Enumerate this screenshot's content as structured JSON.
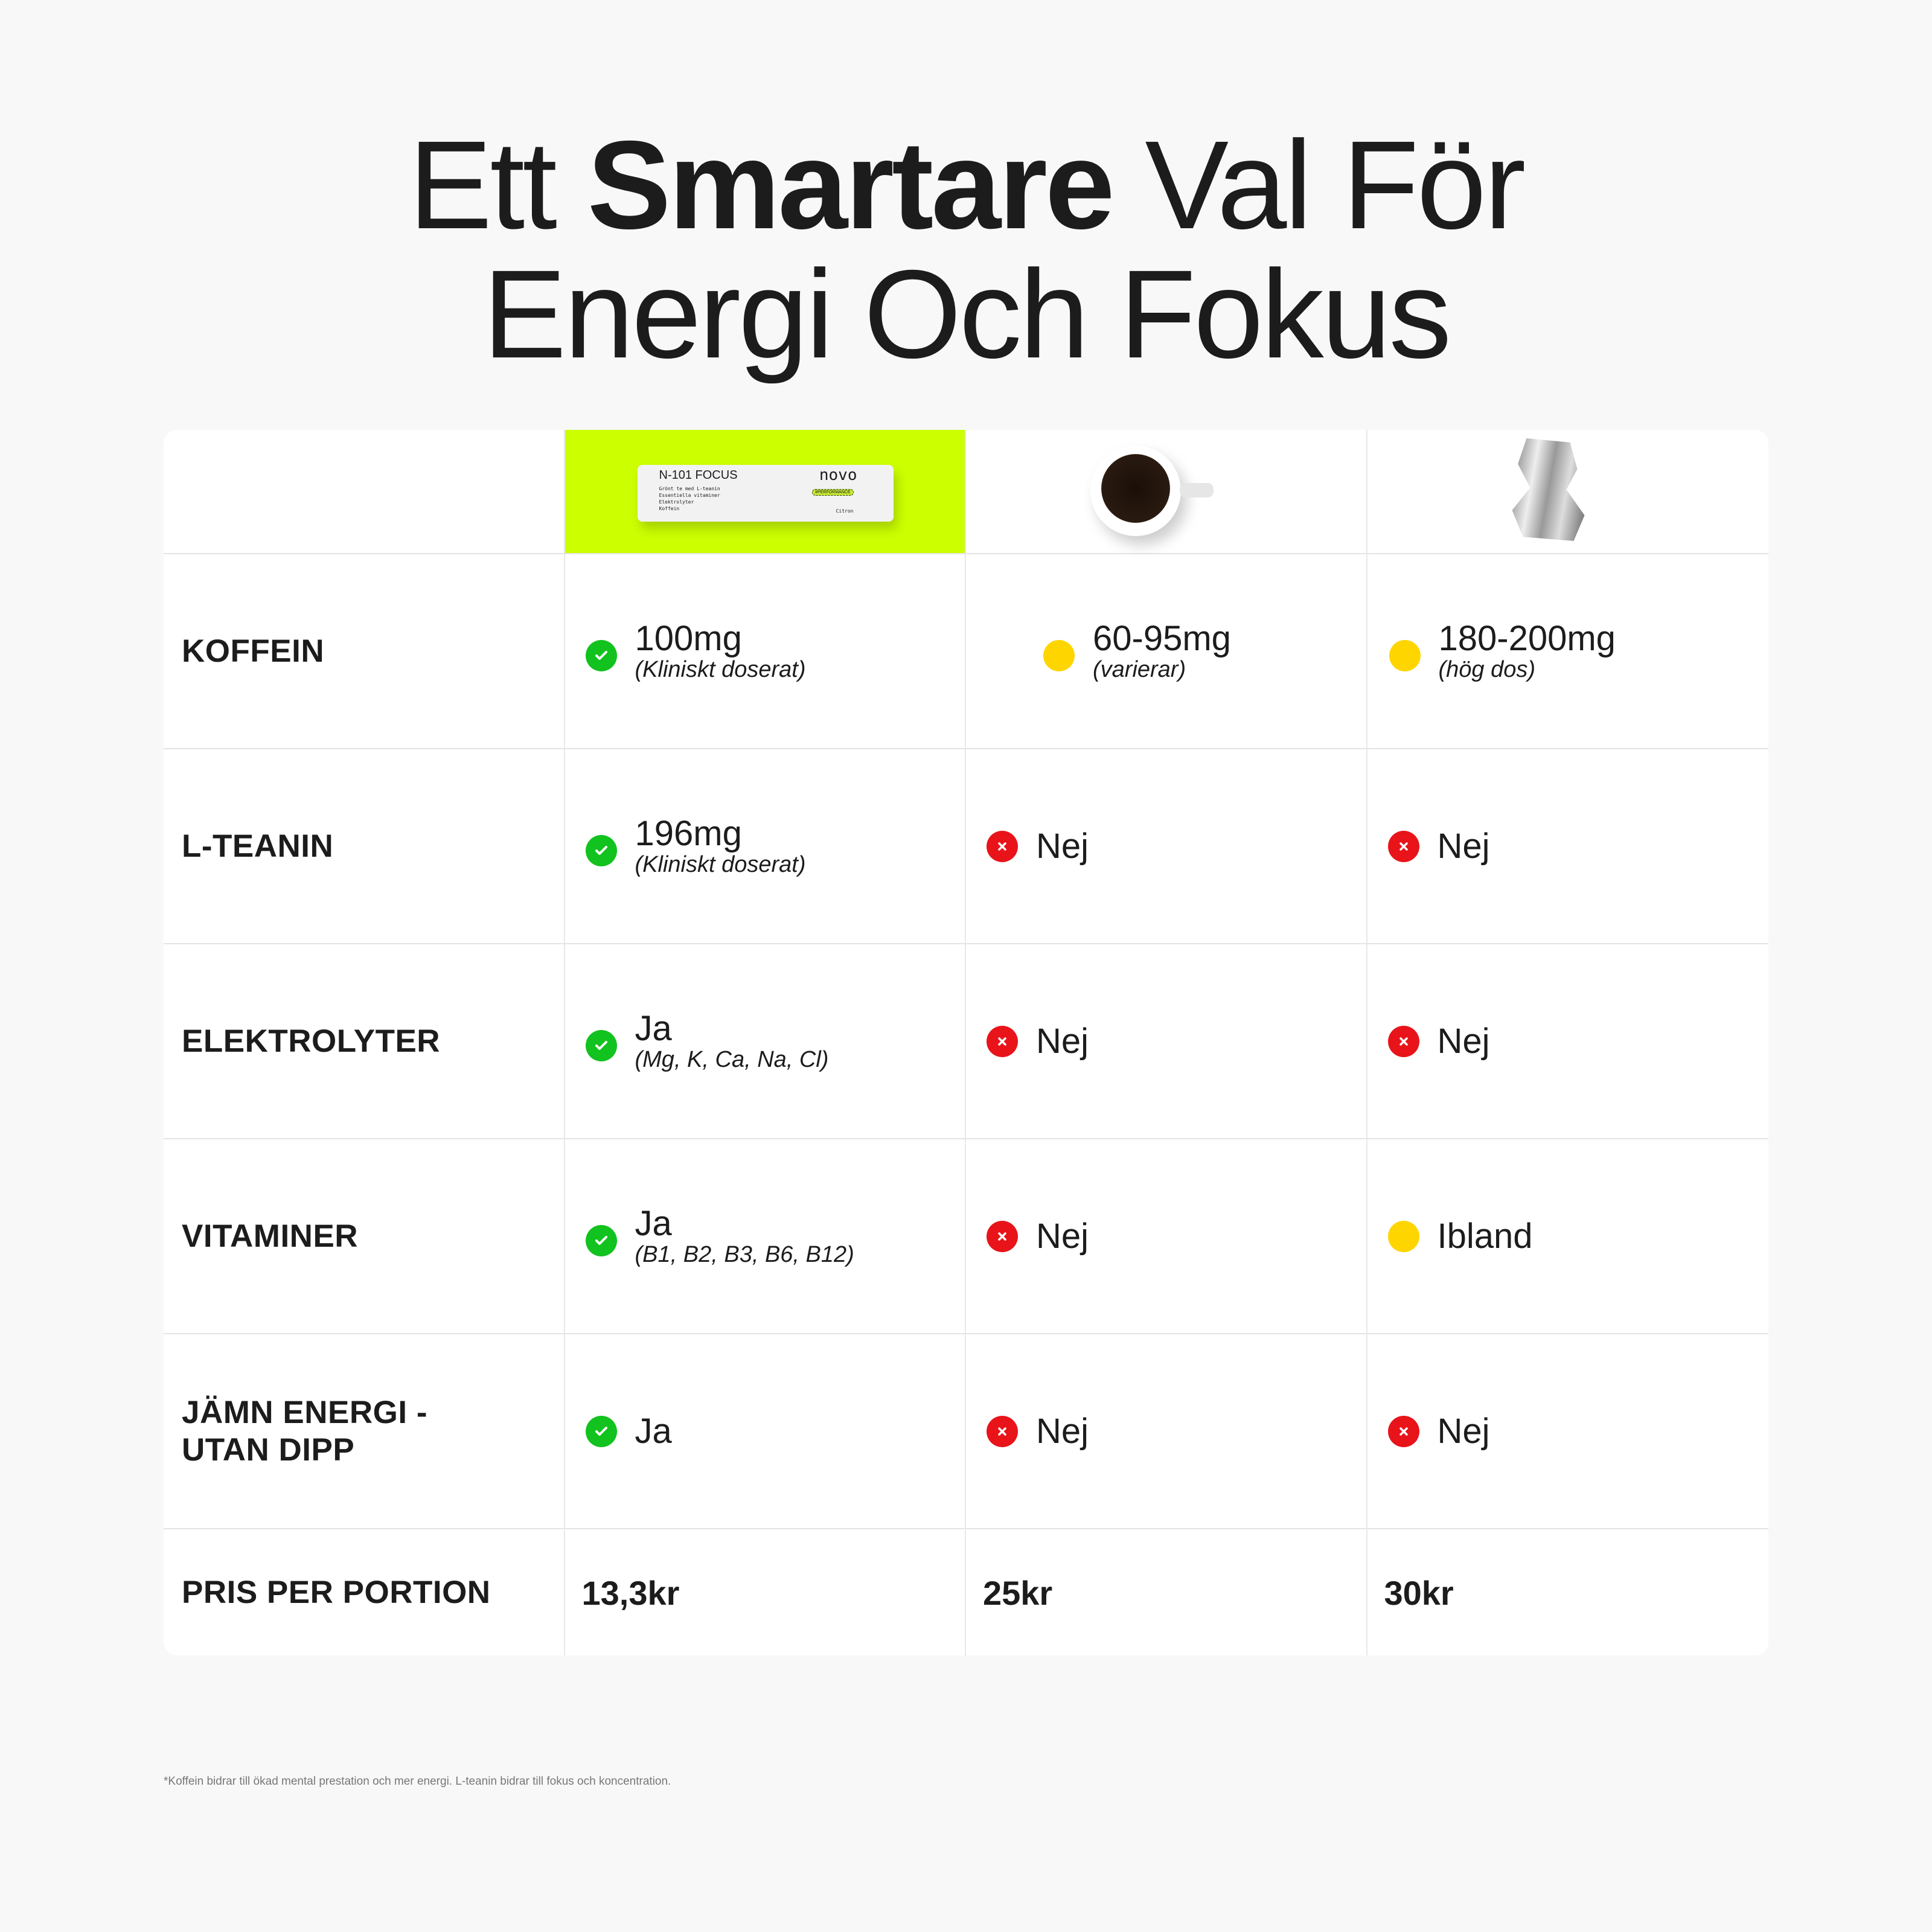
{
  "title": {
    "line1_pre": "Ett ",
    "line1_bold": "Smartare",
    "line1_post": " Val För",
    "line2": "Energi Och Fokus"
  },
  "header": {
    "product": {
      "name": "N-101 FOCUS",
      "brand": "novo",
      "tag": "#PERFORMANCE",
      "flavor": "Citron",
      "lines": [
        "Grönt te med L-teanin",
        "Essentiella vitaminer",
        "Elektrolyter",
        "Koffein"
      ]
    },
    "coffee": "coffee-cup-image",
    "can": "crushed-energy-drink-can-image"
  },
  "colors": {
    "highlight": "#ccff00",
    "yes": "#12c21e",
    "no": "#e8141a",
    "partial": "#ffd500"
  },
  "rows": [
    {
      "label": "KOFFEIN",
      "cells": [
        {
          "status": "yes",
          "main": "100mg",
          "sub": "(Kliniskt doserat)"
        },
        {
          "status": "partial",
          "main": "60-95mg",
          "sub": "(varierar)"
        },
        {
          "status": "partial",
          "main": "180-200mg",
          "sub": "(hög dos)"
        }
      ]
    },
    {
      "label": "L-TEANIN",
      "cells": [
        {
          "status": "yes",
          "main": "196mg",
          "sub": "(Kliniskt doserat)"
        },
        {
          "status": "no",
          "main": "Nej"
        },
        {
          "status": "no",
          "main": "Nej"
        }
      ]
    },
    {
      "label": "ELEKTROLYTER",
      "cells": [
        {
          "status": "yes",
          "main": "Ja",
          "sub": "(Mg, K, Ca, Na, Cl)"
        },
        {
          "status": "no",
          "main": "Nej"
        },
        {
          "status": "no",
          "main": "Nej"
        }
      ]
    },
    {
      "label": "VITAMINER",
      "cells": [
        {
          "status": "yes",
          "main": "Ja",
          "sub": "(B1, B2, B3, B6, B12)"
        },
        {
          "status": "no",
          "main": "Nej"
        },
        {
          "status": "partial",
          "main": "Ibland"
        }
      ]
    },
    {
      "label_1": "JÄMN ENERGI -",
      "label_2": "UTAN DIPP",
      "cells": [
        {
          "status": "yes",
          "main": "Ja"
        },
        {
          "status": "no",
          "main": "Nej"
        },
        {
          "status": "no",
          "main": "Nej"
        }
      ]
    }
  ],
  "price": {
    "label": "PRIS PER PORTION",
    "values": [
      "13,3kr",
      "25kr",
      "30kr"
    ]
  },
  "footnote": "*Koffein bidrar till ökad mental prestation och mer energi. L-teanin bidrar till fokus och koncentration."
}
